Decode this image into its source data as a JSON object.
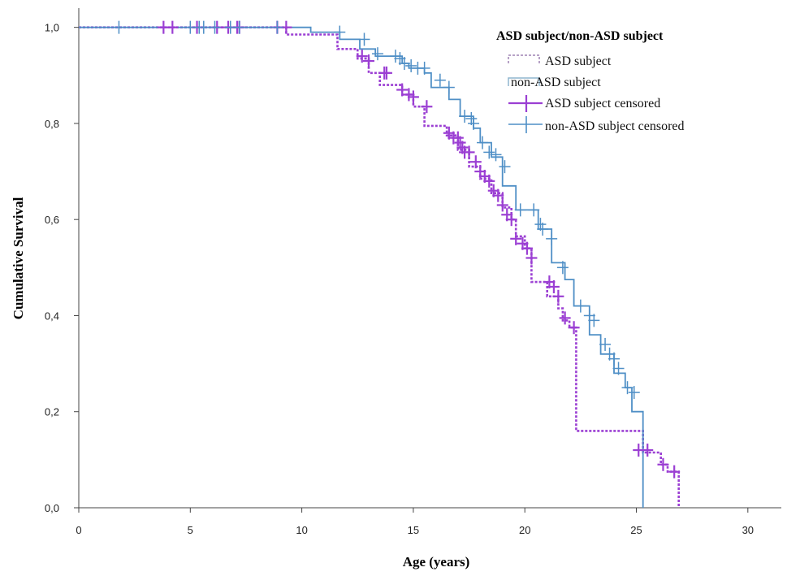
{
  "chart_data": {
    "type": "line",
    "subtype": "kaplan-meier-step",
    "xlabel": "Age (years)",
    "ylabel": "Cumulative Survival",
    "xlim": [
      0,
      31.5
    ],
    "ylim": [
      0,
      1.04
    ],
    "x_ticks": [
      0,
      5,
      10,
      15,
      20,
      25,
      30
    ],
    "x_tick_labels": [
      "0",
      "5",
      "10",
      "15",
      "20",
      "25",
      "30"
    ],
    "y_ticks": [
      0,
      0.2,
      0.4,
      0.6,
      0.8,
      1.0
    ],
    "y_tick_labels": [
      "0,0",
      "0,2",
      "0,4",
      "0,6",
      "0,8",
      "1,0"
    ],
    "grid": false,
    "legend": {
      "title": "ASD subject/non-ASD subject",
      "position": "top-right",
      "entries": [
        {
          "label": "ASD subject",
          "kind": "line-dotted",
          "color": "#b7a2c6"
        },
        {
          "label": "non-ASD subject",
          "kind": "line-solid",
          "color": "#8fb6cf"
        },
        {
          "label": "ASD subject censored",
          "kind": "cross",
          "color": "#9b3fd3"
        },
        {
          "label": "non-ASD subject censored",
          "kind": "cross",
          "color": "#4f8fc6"
        }
      ]
    },
    "series": [
      {
        "name": "ASD subject",
        "color": "#9b3fd3",
        "line_style": "dotted",
        "steps": [
          [
            0,
            1.0
          ],
          [
            9.3,
            1.0
          ],
          [
            9.3,
            0.985
          ],
          [
            11.6,
            0.985
          ],
          [
            11.6,
            0.955
          ],
          [
            12.5,
            0.955
          ],
          [
            12.5,
            0.935
          ],
          [
            13.0,
            0.935
          ],
          [
            13.0,
            0.905
          ],
          [
            13.5,
            0.905
          ],
          [
            13.5,
            0.88
          ],
          [
            14.5,
            0.88
          ],
          [
            14.5,
            0.86
          ],
          [
            15.0,
            0.86
          ],
          [
            15.0,
            0.835
          ],
          [
            15.5,
            0.835
          ],
          [
            15.5,
            0.795
          ],
          [
            16.5,
            0.795
          ],
          [
            16.5,
            0.775
          ],
          [
            17.0,
            0.775
          ],
          [
            17.0,
            0.745
          ],
          [
            17.5,
            0.745
          ],
          [
            17.5,
            0.71
          ],
          [
            18.0,
            0.71
          ],
          [
            18.0,
            0.685
          ],
          [
            18.5,
            0.685
          ],
          [
            18.5,
            0.655
          ],
          [
            19.0,
            0.655
          ],
          [
            19.0,
            0.625
          ],
          [
            19.4,
            0.625
          ],
          [
            19.4,
            0.6
          ],
          [
            19.6,
            0.6
          ],
          [
            19.6,
            0.565
          ],
          [
            20.0,
            0.565
          ],
          [
            20.0,
            0.54
          ],
          [
            20.3,
            0.54
          ],
          [
            20.3,
            0.47
          ],
          [
            21.0,
            0.47
          ],
          [
            21.0,
            0.44
          ],
          [
            21.5,
            0.44
          ],
          [
            21.5,
            0.415
          ],
          [
            21.7,
            0.415
          ],
          [
            21.7,
            0.39
          ],
          [
            22.0,
            0.39
          ],
          [
            22.0,
            0.375
          ],
          [
            22.3,
            0.375
          ],
          [
            22.3,
            0.16
          ],
          [
            25.3,
            0.16
          ],
          [
            25.3,
            0.115
          ],
          [
            26.1,
            0.115
          ],
          [
            26.1,
            0.09
          ],
          [
            26.4,
            0.09
          ],
          [
            26.4,
            0.075
          ],
          [
            26.9,
            0.075
          ],
          [
            26.9,
            0.0
          ]
        ],
        "censored": [
          [
            3.8,
            1.0
          ],
          [
            4.2,
            1.0
          ],
          [
            5.3,
            1.0
          ],
          [
            6.2,
            1.0
          ],
          [
            6.7,
            1.0
          ],
          [
            7.1,
            1.0
          ],
          [
            7.2,
            1.0
          ],
          [
            8.9,
            1.0
          ],
          [
            9.3,
            1.0
          ],
          [
            12.7,
            0.94
          ],
          [
            13.0,
            0.93
          ],
          [
            13.7,
            0.905
          ],
          [
            13.8,
            0.905
          ],
          [
            14.5,
            0.87
          ],
          [
            14.8,
            0.86
          ],
          [
            15.0,
            0.855
          ],
          [
            15.6,
            0.835
          ],
          [
            16.6,
            0.78
          ],
          [
            16.8,
            0.77
          ],
          [
            17.0,
            0.77
          ],
          [
            17.1,
            0.76
          ],
          [
            17.2,
            0.75
          ],
          [
            17.3,
            0.74
          ],
          [
            17.5,
            0.74
          ],
          [
            17.8,
            0.72
          ],
          [
            18.0,
            0.7
          ],
          [
            18.2,
            0.69
          ],
          [
            18.4,
            0.68
          ],
          [
            18.6,
            0.66
          ],
          [
            18.8,
            0.65
          ],
          [
            19.0,
            0.63
          ],
          [
            19.2,
            0.61
          ],
          [
            19.4,
            0.6
          ],
          [
            19.6,
            0.56
          ],
          [
            19.9,
            0.55
          ],
          [
            20.1,
            0.54
          ],
          [
            20.3,
            0.52
          ],
          [
            21.1,
            0.47
          ],
          [
            21.3,
            0.46
          ],
          [
            21.5,
            0.44
          ],
          [
            21.8,
            0.395
          ],
          [
            22.2,
            0.375
          ],
          [
            25.1,
            0.12
          ],
          [
            25.5,
            0.12
          ],
          [
            26.2,
            0.09
          ],
          [
            26.7,
            0.075
          ]
        ]
      },
      {
        "name": "non-ASD subject",
        "color": "#4f8fc6",
        "line_style": "solid",
        "steps": [
          [
            0,
            1.0
          ],
          [
            10.4,
            1.0
          ],
          [
            10.4,
            0.99
          ],
          [
            11.7,
            0.99
          ],
          [
            11.7,
            0.975
          ],
          [
            12.6,
            0.975
          ],
          [
            12.6,
            0.955
          ],
          [
            13.3,
            0.955
          ],
          [
            13.3,
            0.94
          ],
          [
            14.5,
            0.94
          ],
          [
            14.5,
            0.925
          ],
          [
            14.8,
            0.925
          ],
          [
            14.8,
            0.915
          ],
          [
            15.5,
            0.915
          ],
          [
            15.5,
            0.905
          ],
          [
            15.8,
            0.905
          ],
          [
            15.8,
            0.875
          ],
          [
            16.6,
            0.875
          ],
          [
            16.6,
            0.85
          ],
          [
            17.1,
            0.85
          ],
          [
            17.1,
            0.815
          ],
          [
            17.7,
            0.815
          ],
          [
            17.7,
            0.79
          ],
          [
            18.0,
            0.79
          ],
          [
            18.0,
            0.76
          ],
          [
            18.5,
            0.76
          ],
          [
            18.5,
            0.73
          ],
          [
            19.0,
            0.73
          ],
          [
            19.0,
            0.67
          ],
          [
            19.6,
            0.67
          ],
          [
            19.6,
            0.62
          ],
          [
            20.6,
            0.62
          ],
          [
            20.6,
            0.58
          ],
          [
            21.2,
            0.58
          ],
          [
            21.2,
            0.51
          ],
          [
            21.8,
            0.51
          ],
          [
            21.8,
            0.475
          ],
          [
            22.2,
            0.475
          ],
          [
            22.2,
            0.42
          ],
          [
            22.9,
            0.42
          ],
          [
            22.9,
            0.36
          ],
          [
            23.4,
            0.36
          ],
          [
            23.4,
            0.32
          ],
          [
            24.0,
            0.32
          ],
          [
            24.0,
            0.28
          ],
          [
            24.5,
            0.28
          ],
          [
            24.5,
            0.25
          ],
          [
            24.8,
            0.25
          ],
          [
            24.8,
            0.2
          ],
          [
            25.3,
            0.2
          ],
          [
            25.3,
            0.0
          ]
        ],
        "censored": [
          [
            1.8,
            1.0
          ],
          [
            5.0,
            1.0
          ],
          [
            5.4,
            1.0
          ],
          [
            5.6,
            1.0
          ],
          [
            6.1,
            1.0
          ],
          [
            6.8,
            1.0
          ],
          [
            7.2,
            1.0
          ],
          [
            8.9,
            1.0
          ],
          [
            11.7,
            0.99
          ],
          [
            12.8,
            0.975
          ],
          [
            13.4,
            0.945
          ],
          [
            14.2,
            0.94
          ],
          [
            14.4,
            0.935
          ],
          [
            14.6,
            0.925
          ],
          [
            14.9,
            0.92
          ],
          [
            15.2,
            0.915
          ],
          [
            15.5,
            0.915
          ],
          [
            16.2,
            0.89
          ],
          [
            16.6,
            0.875
          ],
          [
            17.3,
            0.815
          ],
          [
            17.6,
            0.81
          ],
          [
            17.7,
            0.8
          ],
          [
            18.1,
            0.76
          ],
          [
            18.4,
            0.74
          ],
          [
            18.7,
            0.735
          ],
          [
            19.1,
            0.71
          ],
          [
            19.8,
            0.62
          ],
          [
            20.4,
            0.62
          ],
          [
            20.7,
            0.59
          ],
          [
            20.8,
            0.58
          ],
          [
            21.2,
            0.56
          ],
          [
            21.7,
            0.5
          ],
          [
            22.5,
            0.42
          ],
          [
            22.9,
            0.4
          ],
          [
            23.1,
            0.39
          ],
          [
            23.6,
            0.34
          ],
          [
            23.8,
            0.32
          ],
          [
            24.0,
            0.31
          ],
          [
            24.2,
            0.29
          ],
          [
            24.6,
            0.25
          ],
          [
            24.9,
            0.24
          ]
        ]
      }
    ]
  }
}
